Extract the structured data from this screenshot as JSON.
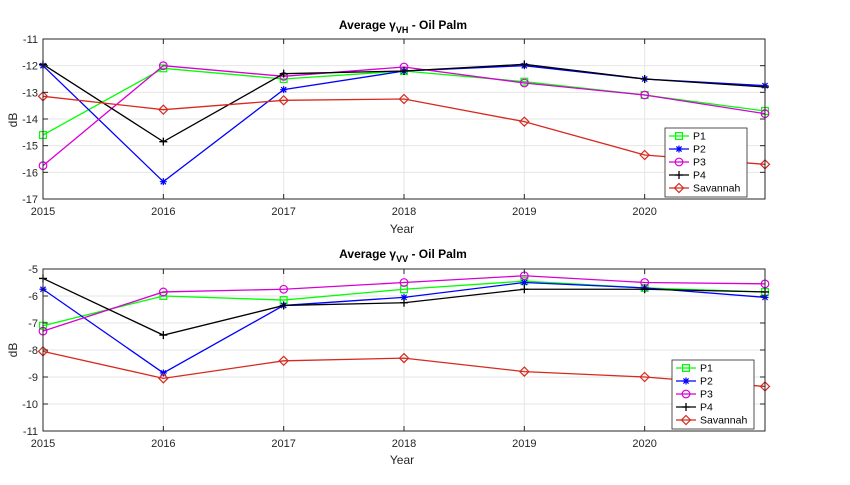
{
  "chart_data": [
    {
      "type": "line",
      "title": "Average γ",
      "title_sub": "VH",
      "title_rest": " -  Oil Palm",
      "xlabel": "Year",
      "ylabel": "dB",
      "x": [
        2015,
        2016,
        2017,
        2018,
        2019,
        2020,
        2021
      ],
      "xticks": [
        2015,
        2016,
        2017,
        2018,
        2019,
        2020
      ],
      "xlim": [
        2015,
        2021
      ],
      "ylim": [
        -17,
        -11
      ],
      "yticks": [
        -17,
        -16,
        -15,
        -14,
        -13,
        -12,
        -11
      ],
      "grid": true,
      "legend_position": "lower-right",
      "series": [
        {
          "name": "P1",
          "color": "#00ff00",
          "marker": "square",
          "values": [
            -14.6,
            -12.1,
            -12.5,
            -12.2,
            -12.6,
            -13.1,
            -13.7
          ]
        },
        {
          "name": "P2",
          "color": "#0000ff",
          "marker": "star",
          "values": [
            -12.0,
            -16.35,
            -12.9,
            -12.2,
            -12.0,
            -12.5,
            -12.75
          ]
        },
        {
          "name": "P3",
          "color": "#d600d6",
          "marker": "circle",
          "values": [
            -15.75,
            -12.0,
            -12.4,
            -12.05,
            -12.65,
            -13.1,
            -13.8
          ]
        },
        {
          "name": "P4",
          "color": "#000000",
          "marker": "plus",
          "values": [
            -11.95,
            -14.85,
            -12.3,
            -12.2,
            -11.95,
            -12.5,
            -12.8
          ]
        },
        {
          "name": "Savannah",
          "color": "#d62a1f",
          "marker": "diamond",
          "values": [
            -13.15,
            -13.65,
            -13.3,
            -13.25,
            -14.1,
            -15.35,
            -15.7
          ]
        }
      ]
    },
    {
      "type": "line",
      "title": "Average γ",
      "title_sub": "VV",
      "title_rest": " -  Oil Palm",
      "xlabel": "Year",
      "ylabel": "dB",
      "x": [
        2015,
        2016,
        2017,
        2018,
        2019,
        2020,
        2021
      ],
      "xticks": [
        2015,
        2016,
        2017,
        2018,
        2019,
        2020
      ],
      "xlim": [
        2015,
        2021
      ],
      "ylim": [
        -11,
        -5
      ],
      "yticks": [
        -11,
        -10,
        -9,
        -8,
        -7,
        -6,
        -5
      ],
      "grid": true,
      "legend_position": "lower-right",
      "series": [
        {
          "name": "P1",
          "color": "#00ff00",
          "marker": "square",
          "values": [
            -7.1,
            -6.0,
            -6.15,
            -5.75,
            -5.45,
            -5.7,
            -5.85
          ]
        },
        {
          "name": "P2",
          "color": "#0000ff",
          "marker": "star",
          "values": [
            -5.75,
            -8.85,
            -6.35,
            -6.05,
            -5.5,
            -5.7,
            -6.05
          ]
        },
        {
          "name": "P3",
          "color": "#d600d6",
          "marker": "circle",
          "values": [
            -7.3,
            -5.85,
            -5.75,
            -5.5,
            -5.25,
            -5.5,
            -5.55
          ]
        },
        {
          "name": "P4",
          "color": "#000000",
          "marker": "plus",
          "values": [
            -5.35,
            -7.45,
            -6.35,
            -6.25,
            -5.75,
            -5.75,
            -5.85
          ]
        },
        {
          "name": "Savannah",
          "color": "#d62a1f",
          "marker": "diamond",
          "values": [
            -8.05,
            -9.05,
            -8.4,
            -8.3,
            -8.8,
            -9.0,
            -9.35
          ]
        }
      ]
    }
  ]
}
